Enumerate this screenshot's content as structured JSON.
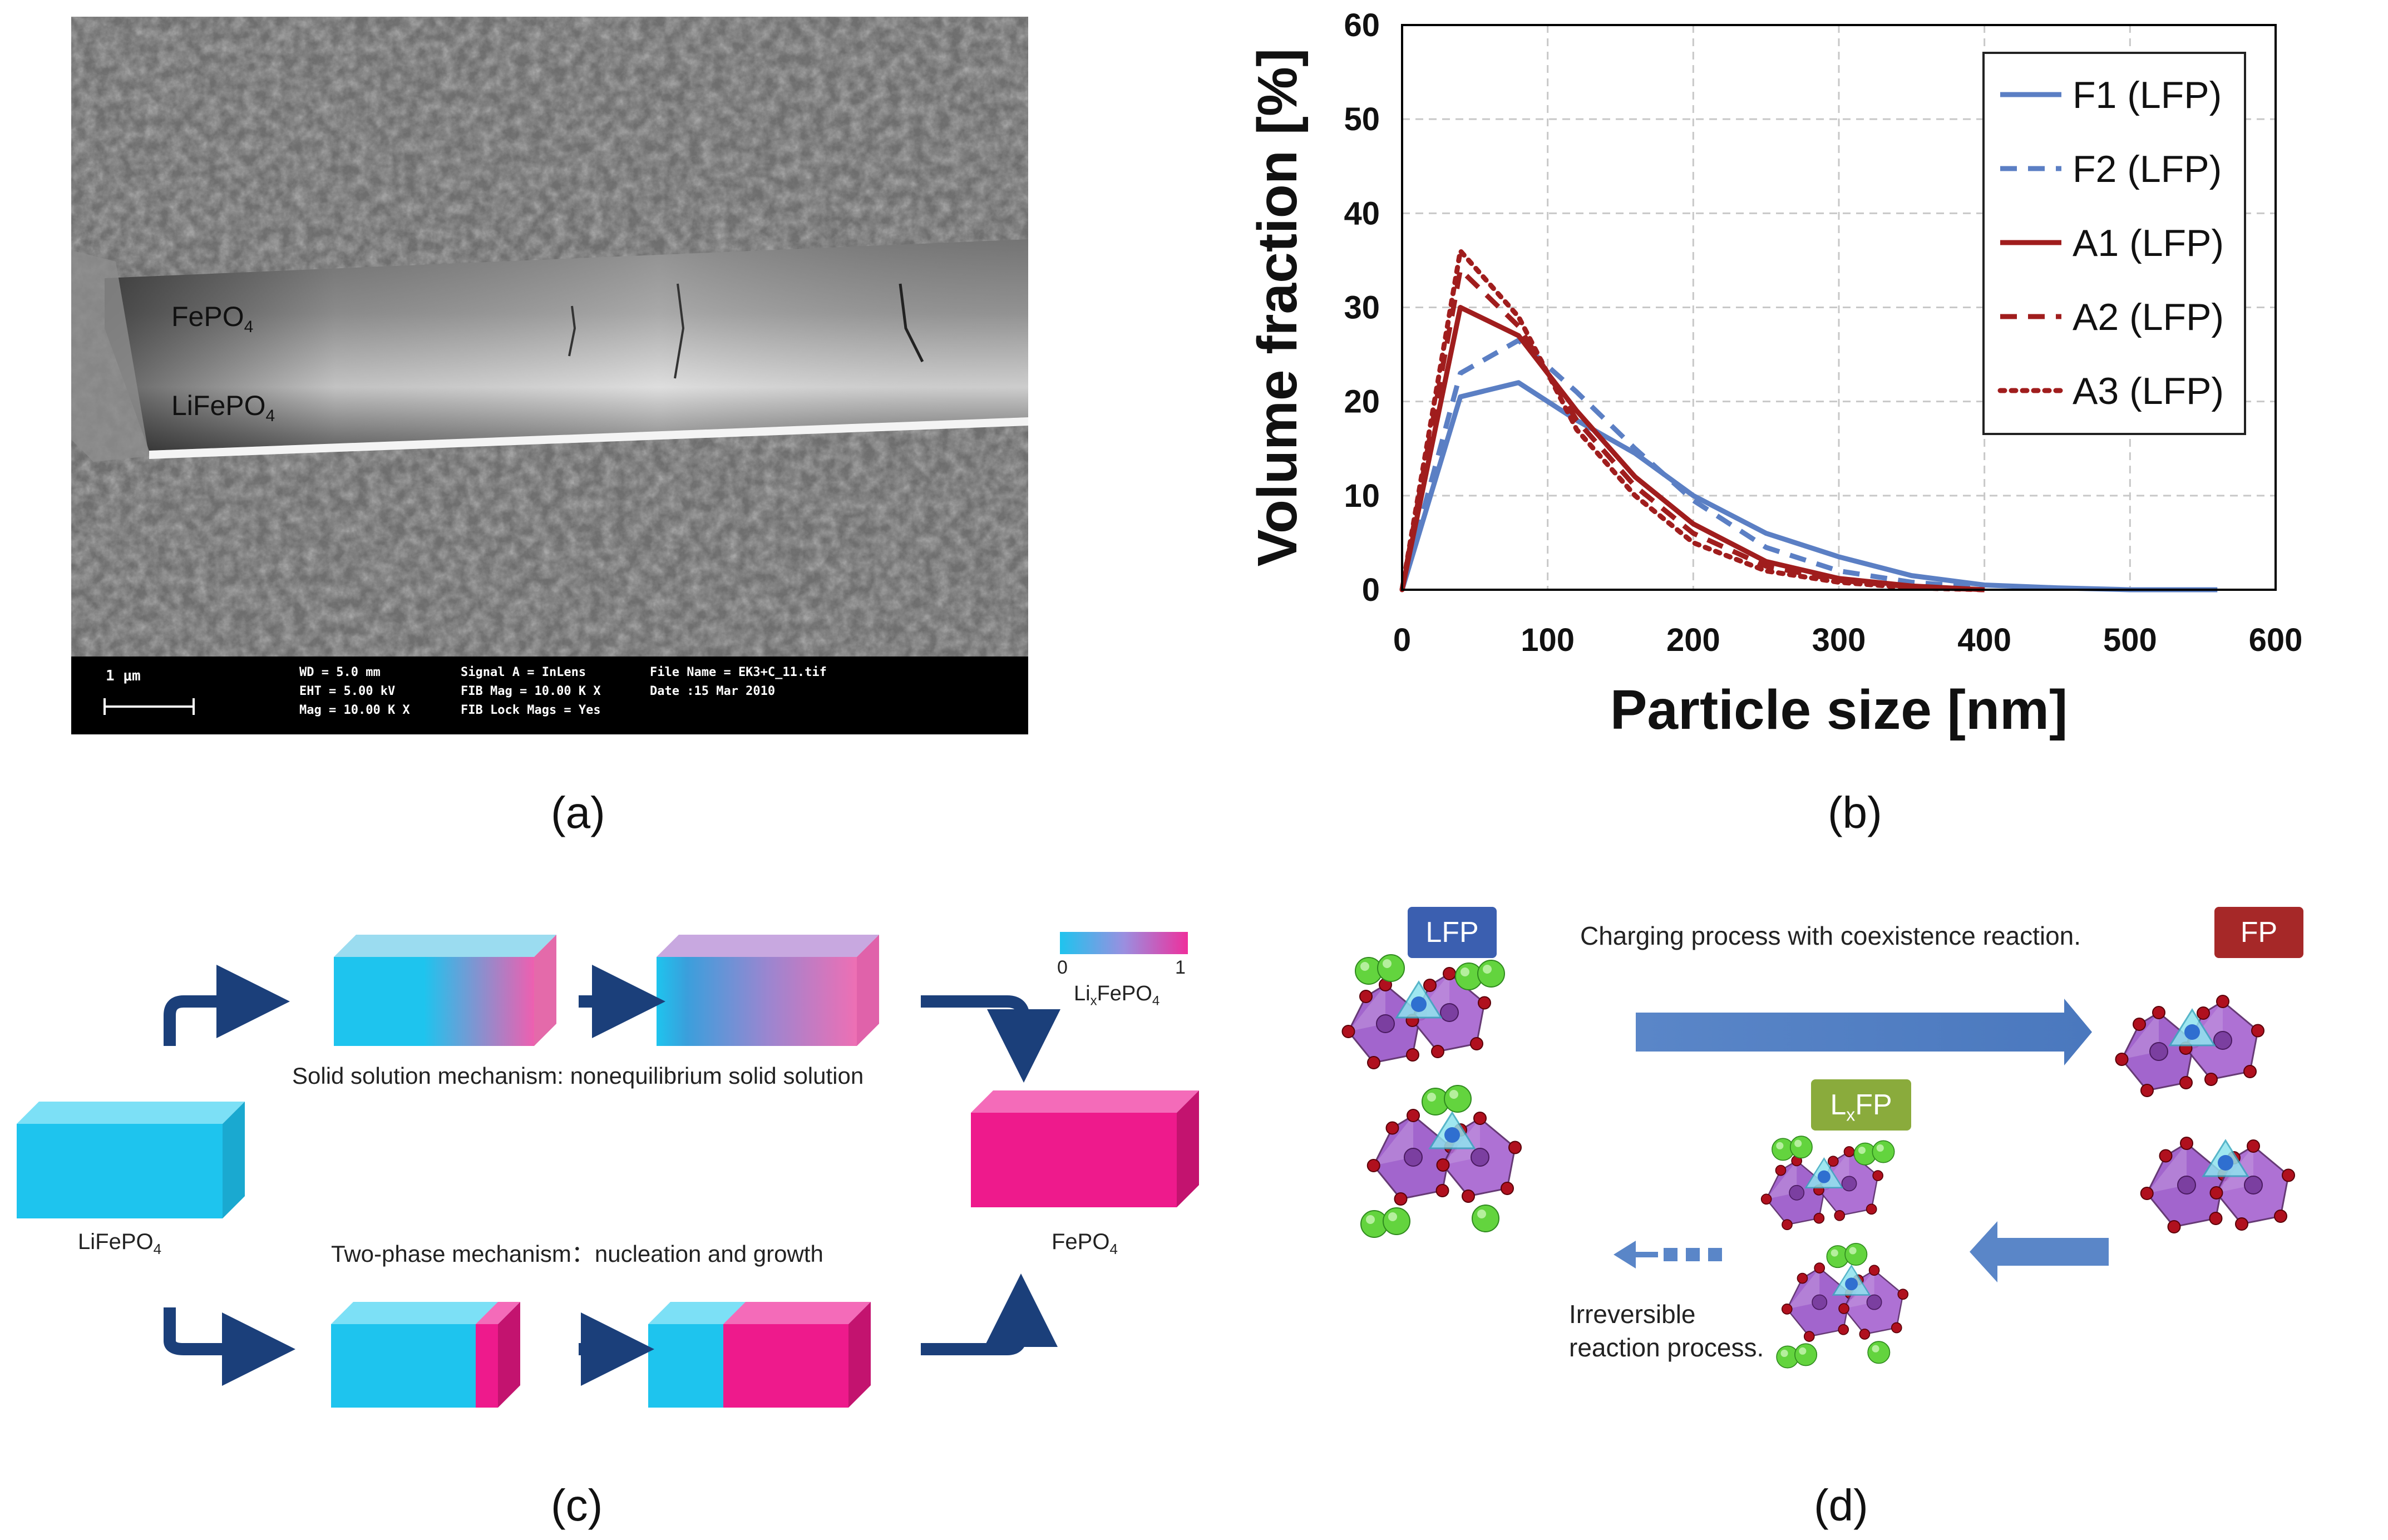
{
  "panels": {
    "a": {
      "label": "(a)"
    },
    "b": {
      "label": "(b)"
    },
    "c": {
      "label": "(c)"
    },
    "d": {
      "label": "(d)"
    }
  },
  "sem": {
    "layer_top": "FePO",
    "layer_top_sub": "4",
    "layer_bottom": "LiFePO",
    "layer_bottom_sub": "4",
    "scale_bar": "1 μm",
    "info_col1": "WD = 5.0 mm\nEHT = 5.00 kV\nMag = 10.00 K X",
    "info_col2": "Signal A = InLens\nFIB Mag = 10.00 K X\nFIB Lock Mags = Yes",
    "info_col3": "File Name = EK3+C_11.tif\nDate :15 Mar 2010"
  },
  "chart_data": {
    "type": "line",
    "xlabel": "Particle size [nm]",
    "ylabel": "Volume fraction [%]",
    "xlim": [
      0,
      600
    ],
    "ylim": [
      0,
      60
    ],
    "xticks": [
      0,
      100,
      200,
      300,
      400,
      500,
      600
    ],
    "yticks": [
      0,
      10,
      20,
      30,
      40,
      50,
      60
    ],
    "grid": true,
    "legend_position": "top-right",
    "series": [
      {
        "name": "F1 (LFP)",
        "color": "#5b7fc4",
        "dash": "solid",
        "x": [
          0,
          40,
          80,
          120,
          160,
          200,
          250,
          300,
          350,
          400,
          450,
          500,
          560
        ],
        "y": [
          0,
          20.5,
          22,
          18,
          14.5,
          10,
          6,
          3.5,
          1.5,
          0.5,
          0.2,
          0,
          0
        ]
      },
      {
        "name": "F2 (LFP)",
        "color": "#5b7fc4",
        "dash": "dashed",
        "x": [
          0,
          40,
          80,
          120,
          160,
          200,
          250,
          300,
          350,
          400
        ],
        "y": [
          0,
          23,
          26.5,
          21,
          15,
          9.5,
          4.5,
          2,
          0.8,
          0.2
        ]
      },
      {
        "name": "A1 (LFP)",
        "color": "#a01d1d",
        "dash": "solid",
        "x": [
          0,
          40,
          80,
          120,
          160,
          200,
          250,
          300,
          350,
          400
        ],
        "y": [
          0,
          30,
          27,
          19,
          12,
          7,
          3,
          1.2,
          0.4,
          0
        ]
      },
      {
        "name": "A2 (LFP)",
        "color": "#a01d1d",
        "dash": "dashed",
        "x": [
          0,
          40,
          80,
          120,
          160,
          200,
          250,
          300,
          350,
          400
        ],
        "y": [
          0,
          34,
          28,
          18,
          11,
          6,
          2.5,
          1,
          0.3,
          0
        ]
      },
      {
        "name": "A3 (LFP)",
        "color": "#a01d1d",
        "dash": "dotted",
        "x": [
          0,
          40,
          80,
          120,
          160,
          200,
          250,
          300,
          350,
          400
        ],
        "y": [
          0,
          36,
          29,
          17,
          10,
          5,
          2,
          0.8,
          0.2,
          0
        ]
      }
    ]
  },
  "mechanism": {
    "start_label": "LiFePO",
    "start_sub": "4",
    "end_label": "FePO",
    "end_sub": "4",
    "solid_solution": "Solid solution mechanism: nonequilibrium solid solution",
    "two_phase": "Two-phase mechanism：nucleation and growth",
    "colorbar_min": "0",
    "colorbar_max": "1",
    "colorbar_label": "LixFePO4",
    "colorbar_label_pre": "Li",
    "colorbar_label_sub1": "x",
    "colorbar_label_mid": "FePO",
    "colorbar_label_sub2": "4",
    "cyan": "#1ec4ee",
    "magenta": "#ee1a8c",
    "arrow_color": "#1b3f7a"
  },
  "crystal": {
    "lfp_badge": "LFP",
    "fp_badge": "FP",
    "lxfp_badge_pre": "L",
    "lxfp_badge_sub": "x",
    "lxfp_badge_post": "FP",
    "charging": "Charging process with coexistence reaction.",
    "irreversible_line1": "Irreversible",
    "irreversible_line2": "reaction process.",
    "lfp_color": "#3b5fb0",
    "fp_color": "#a62828",
    "lxfp_color": "#8aab3c",
    "arrow_color": "#5a86c8"
  }
}
